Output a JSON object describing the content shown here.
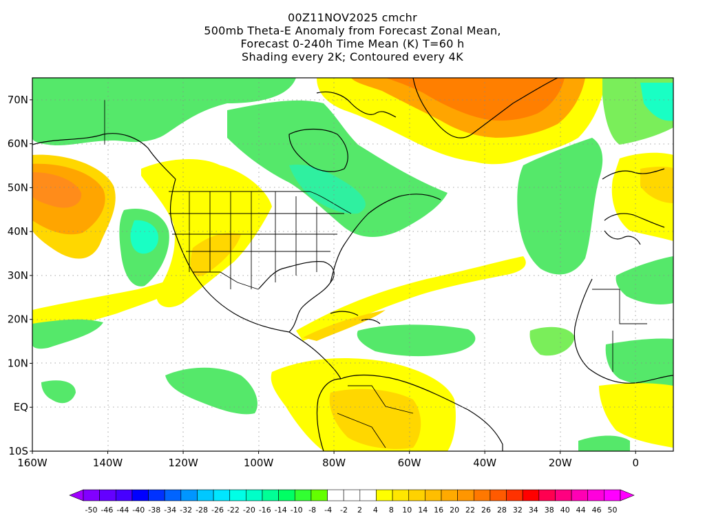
{
  "title_lines": [
    "00Z11NOV2025 cmchr",
    "500mb Theta-E Anomaly from Forecast Zonal Mean,",
    "Forecast 0-240h Time Mean (K) T=60 h",
    "Shading every 2K; Contoured every 4K"
  ],
  "map": {
    "lon_range": [
      -160,
      10
    ],
    "lat_range": [
      -10,
      75
    ],
    "lon_tick_labels": [
      {
        "lon": -160,
        "label": "160W"
      },
      {
        "lon": -140,
        "label": "140W"
      },
      {
        "lon": -120,
        "label": "120W"
      },
      {
        "lon": -100,
        "label": "100W"
      },
      {
        "lon": -80,
        "label": "80W"
      },
      {
        "lon": -60,
        "label": "60W"
      },
      {
        "lon": -40,
        "label": "40W"
      },
      {
        "lon": -20,
        "label": "20W"
      },
      {
        "lon": 0,
        "label": "0"
      }
    ],
    "lat_tick_labels": [
      {
        "lat": 70,
        "label": "70N"
      },
      {
        "lat": 60,
        "label": "60N"
      },
      {
        "lat": 50,
        "label": "50N"
      },
      {
        "lat": 40,
        "label": "40N"
      },
      {
        "lat": 30,
        "label": "30N"
      },
      {
        "lat": 20,
        "label": "20N"
      },
      {
        "lat": 10,
        "label": "10N"
      },
      {
        "lat": 0,
        "label": "EQ"
      },
      {
        "lat": -10,
        "label": "10S"
      }
    ],
    "grid": "dotted"
  },
  "colorbar": {
    "labels": [
      "-50",
      "-46",
      "-44",
      "-40",
      "-38",
      "-34",
      "-32",
      "-28",
      "-26",
      "-22",
      "-20",
      "-16",
      "-14",
      "-10",
      "-8",
      "-4",
      "-2",
      "2",
      "4",
      "8",
      "10",
      "14",
      "16",
      "20",
      "22",
      "26",
      "28",
      "32",
      "34",
      "38",
      "40",
      "44",
      "46",
      "50"
    ],
    "colors": [
      "#a000ff",
      "#8200ff",
      "#6400ff",
      "#4600ff",
      "#0000ff",
      "#0032ff",
      "#0064ff",
      "#0096ff",
      "#00c8ff",
      "#00e6ff",
      "#00ffe6",
      "#00ffc8",
      "#00ff96",
      "#00ff64",
      "#32ff32",
      "#64ff00",
      "#ffffff",
      "#ffffff",
      "#ffffff",
      "#ffff00",
      "#ffe600",
      "#ffd200",
      "#ffbe00",
      "#ffaa00",
      "#ff9600",
      "#ff7800",
      "#ff5a00",
      "#ff3200",
      "#ff0000",
      "#ff0050",
      "#ff0080",
      "#ff00b4",
      "#ff00dc",
      "#ff00ff",
      "#ff00ff"
    ]
  },
  "field_colors": {
    "green": "#55e86a",
    "lightgreen": "#7aee5a",
    "cyan": "#19ffc4",
    "yellow": "#ffff00",
    "gold": "#ffd700",
    "orange": "#ffa500",
    "darkorange": "#ff7f00"
  }
}
